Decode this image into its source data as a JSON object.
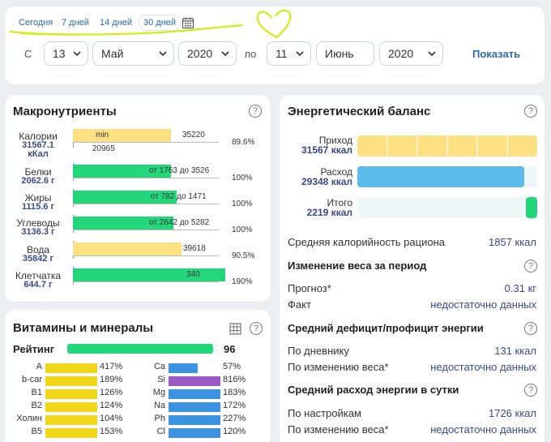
{
  "filter": {
    "quick": [
      "Сегодня",
      "7 дней",
      "14 дней",
      "30 дней"
    ],
    "from_label": "С",
    "from_day": "13",
    "from_month": "Май",
    "from_year": "2020",
    "to_label": "по",
    "to_day": "11",
    "to_month": "Июнь",
    "to_year": "2020",
    "show_label": "Показать"
  },
  "macro": {
    "title": "Макронутриенты",
    "help": "?",
    "rows": [
      {
        "name": "Калории",
        "value": "31567.1",
        "unit": "кКал",
        "min_text": "min",
        "top_text": "35220",
        "bottom_text": "20965",
        "pct": "89.6%",
        "fill": 0.896,
        "color": "#fde082"
      },
      {
        "name": "Белки",
        "value": "2062.6 г",
        "range": "от 1763 до 3526",
        "pct": "100%",
        "fill": 1.0,
        "color": "#22d67a"
      },
      {
        "name": "Жиры",
        "value": "1115.6 г",
        "range": "от 782 до 1471",
        "pct": "100%",
        "fill": 1.0,
        "color": "#22d67a"
      },
      {
        "name": "Углеводы",
        "value": "3136.3 г",
        "range": "от 2642 до 5282",
        "pct": "100%",
        "fill": 1.0,
        "color": "#22d67a"
      },
      {
        "name": "Вода",
        "value": "35842 г",
        "top_text": "39618",
        "pct": "90.5%",
        "fill": 0.905,
        "color": "#fde082"
      },
      {
        "name": "Клетчатка",
        "value": "644.7 г",
        "top_text": "340",
        "pct": "190%",
        "fill": 1.0,
        "color": "#22d67a"
      }
    ]
  },
  "vitamins": {
    "title": "Витамины и минералы",
    "help": "?",
    "rating_label": "Рейтинг",
    "rating_value": "96",
    "rating_fill": 0.96,
    "left": [
      {
        "name": "A",
        "pct": "417%",
        "color": "#f2d81a"
      },
      {
        "name": "b-car",
        "pct": "189%",
        "color": "#f2d81a"
      },
      {
        "name": "B1",
        "pct": "126%",
        "color": "#f2d81a"
      },
      {
        "name": "B2",
        "pct": "124%",
        "color": "#f2d81a"
      },
      {
        "name": "Холин",
        "pct": "104%",
        "color": "#f2d81a"
      },
      {
        "name": "B5",
        "pct": "153%",
        "color": "#f2d81a"
      }
    ],
    "right": [
      {
        "name": "Ca",
        "pct": "57%",
        "color": "#3d93df",
        "fill": 0.57
      },
      {
        "name": "Si",
        "pct": "816%",
        "color": "#9b59c4",
        "fill": 1.0
      },
      {
        "name": "Mg",
        "pct": "183%",
        "color": "#3d93df",
        "fill": 1.0
      },
      {
        "name": "Na",
        "pct": "172%",
        "color": "#3d93df",
        "fill": 1.0
      },
      {
        "name": "Ph",
        "pct": "227%",
        "color": "#3d93df",
        "fill": 1.0
      },
      {
        "name": "Cl",
        "pct": "120%",
        "color": "#3d93df",
        "fill": 1.0
      }
    ]
  },
  "energy": {
    "title": "Энергетический баланс",
    "help": "?",
    "bars": [
      {
        "name": "Приход",
        "value": "31567 ккал",
        "fill": 1.0,
        "color": "#fde082"
      },
      {
        "name": "Расход",
        "value": "29348 ккал",
        "fill": 0.93,
        "color": "#5bbbea"
      },
      {
        "name": "Итого",
        "value": "2219 ккал",
        "fill": 0.07,
        "color": "#22d67a"
      }
    ],
    "avg_label": "Средняя калорийность рациона",
    "avg_value": "1857 ккал",
    "weight_title": "Изменение веса за период",
    "forecast_label": "Прогноз*",
    "forecast_value": "0.31 кг",
    "fact_label": "Факт",
    "fact_value": "недостаточно данных",
    "deficit_title": "Средний дефицит/профицит энергии",
    "diary_label": "По дневнику",
    "diary_value": "131 ккал",
    "byweight_label": "По изменению веса*",
    "byweight_value": "недостаточно данных",
    "daily_title": "Средний расход энергии в сутки",
    "settings_label": "По настройкам",
    "settings_value": "1726 ккал",
    "byweight2_label": "По изменению веса*",
    "byweight2_value": "недостаточно данных"
  }
}
